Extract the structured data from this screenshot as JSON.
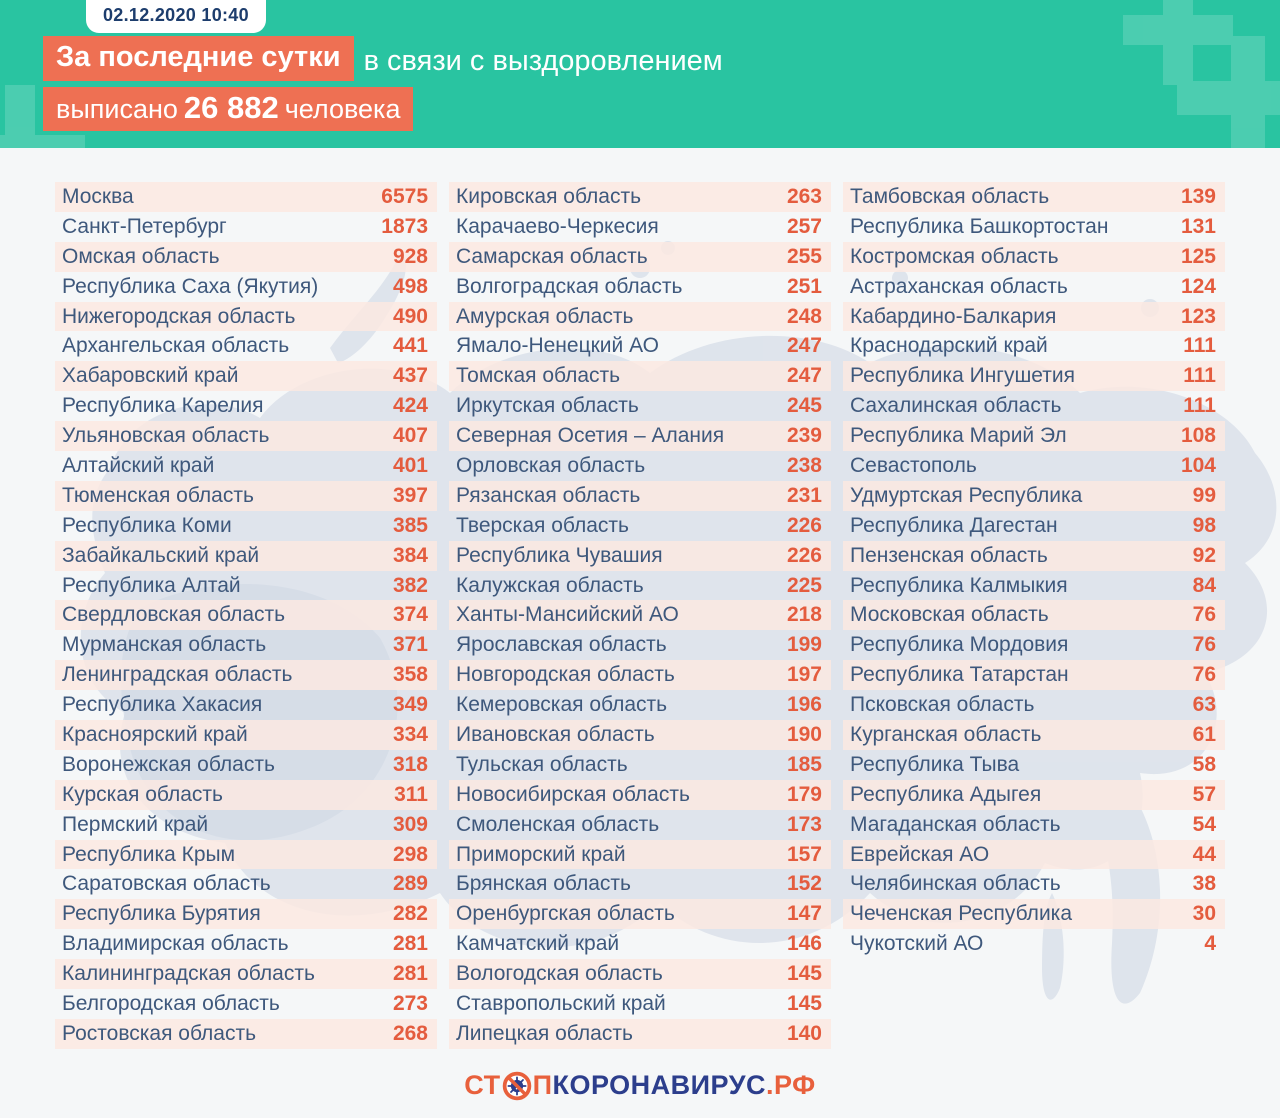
{
  "badge": {
    "datetime": "02.12.2020 10:40"
  },
  "headline": {
    "highlight": "За последние сутки",
    "rest": "в связи с выздоровлением",
    "line2_prefix": "выписано",
    "line2_number": "26 882",
    "line2_suffix": "человека"
  },
  "chart_data": {
    "type": "table",
    "title": "За последние сутки в связи с выздоровлением выписано 26 882 человека",
    "timestamp": "02.12.2020 10:40",
    "unit": "человека",
    "columns": [
      {
        "rows": [
          {
            "region": "Москва",
            "value": "6575"
          },
          {
            "region": "Санкт-Петербург",
            "value": "1873"
          },
          {
            "region": "Омская область",
            "value": "928"
          },
          {
            "region": "Республика Саха (Якутия)",
            "value": "498"
          },
          {
            "region": "Нижегородская область",
            "value": "490"
          },
          {
            "region": "Архангельская область",
            "value": "441"
          },
          {
            "region": "Хабаровский край",
            "value": "437"
          },
          {
            "region": "Республика Карелия",
            "value": "424"
          },
          {
            "region": "Ульяновская область",
            "value": "407"
          },
          {
            "region": "Алтайский край",
            "value": "401"
          },
          {
            "region": "Тюменская область",
            "value": "397"
          },
          {
            "region": "Республика Коми",
            "value": "385"
          },
          {
            "region": "Забайкальский край",
            "value": "384"
          },
          {
            "region": "Республика Алтай",
            "value": "382"
          },
          {
            "region": "Свердловская область",
            "value": "374"
          },
          {
            "region": "Мурманская область",
            "value": "371"
          },
          {
            "region": "Ленинградская область",
            "value": "358"
          },
          {
            "region": "Республика Хакасия",
            "value": "349"
          },
          {
            "region": "Красноярский край",
            "value": "334"
          },
          {
            "region": "Воронежская область",
            "value": "318"
          },
          {
            "region": "Курская область",
            "value": "311"
          },
          {
            "region": "Пермский край",
            "value": "309"
          },
          {
            "region": "Республика Крым",
            "value": "298"
          },
          {
            "region": "Саратовская область",
            "value": "289"
          },
          {
            "region": "Республика Бурятия",
            "value": "282"
          },
          {
            "region": "Владимирская область",
            "value": "281"
          },
          {
            "region": "Калининградская область",
            "value": "281"
          },
          {
            "region": "Белгородская область",
            "value": "273"
          },
          {
            "region": "Ростовская область",
            "value": "268"
          }
        ]
      },
      {
        "rows": [
          {
            "region": "Кировская область",
            "value": "263"
          },
          {
            "region": "Карачаево-Черкесия",
            "value": "257"
          },
          {
            "region": "Самарская область",
            "value": "255"
          },
          {
            "region": "Волгоградская область",
            "value": "251"
          },
          {
            "region": "Амурская область",
            "value": "248"
          },
          {
            "region": "Ямало-Ненецкий АО",
            "value": "247"
          },
          {
            "region": "Томская область",
            "value": "247"
          },
          {
            "region": "Иркутская область",
            "value": "245"
          },
          {
            "region": "Северная Осетия – Алания",
            "value": "239"
          },
          {
            "region": "Орловская область",
            "value": "238"
          },
          {
            "region": "Рязанская область",
            "value": "231"
          },
          {
            "region": "Тверская область",
            "value": "226"
          },
          {
            "region": "Республика Чувашия",
            "value": "226"
          },
          {
            "region": "Калужская область",
            "value": "225"
          },
          {
            "region": "Ханты-Мансийский АО",
            "value": "218"
          },
          {
            "region": "Ярославская область",
            "value": "199"
          },
          {
            "region": "Новгородская область",
            "value": "197"
          },
          {
            "region": "Кемеровская область",
            "value": "196"
          },
          {
            "region": "Ивановская область",
            "value": "190"
          },
          {
            "region": "Тульская область",
            "value": "185"
          },
          {
            "region": "Новосибирская область",
            "value": "179"
          },
          {
            "region": "Смоленская область",
            "value": "173"
          },
          {
            "region": "Приморский край",
            "value": "157"
          },
          {
            "region": "Брянская область",
            "value": "152"
          },
          {
            "region": "Оренбургская область",
            "value": "147"
          },
          {
            "region": "Камчатский край",
            "value": "146"
          },
          {
            "region": "Вологодская область",
            "value": "145"
          },
          {
            "region": "Ставропольский край",
            "value": "145"
          },
          {
            "region": "Липецкая область",
            "value": "140"
          }
        ]
      },
      {
        "rows": [
          {
            "region": "Тамбовская область",
            "value": "139"
          },
          {
            "region": "Республика Башкортостан",
            "value": "131"
          },
          {
            "region": "Костромская область",
            "value": "125"
          },
          {
            "region": "Астраханская область",
            "value": "124"
          },
          {
            "region": "Кабардино-Балкария",
            "value": "123"
          },
          {
            "region": "Краснодарский край",
            "value": "111"
          },
          {
            "region": "Республика Ингушетия",
            "value": "111"
          },
          {
            "region": "Сахалинская область",
            "value": "111"
          },
          {
            "region": "Республика Марий Эл",
            "value": "108"
          },
          {
            "region": "Севастополь",
            "value": "104"
          },
          {
            "region": "Удмуртская Республика",
            "value": "99"
          },
          {
            "region": "Республика Дагестан",
            "value": "98"
          },
          {
            "region": "Пензенская область",
            "value": "92"
          },
          {
            "region": "Республика Калмыкия",
            "value": "84"
          },
          {
            "region": "Московская область",
            "value": "76"
          },
          {
            "region": "Республика Мордовия",
            "value": "76"
          },
          {
            "region": "Республика Татарстан",
            "value": "76"
          },
          {
            "region": "Псковская область",
            "value": "63"
          },
          {
            "region": "Курганская область",
            "value": "61"
          },
          {
            "region": "Республика Тыва",
            "value": "58"
          },
          {
            "region": "Республика Адыгея",
            "value": "57"
          },
          {
            "region": "Магаданская область",
            "value": "54"
          },
          {
            "region": "Еврейская АО",
            "value": "44"
          },
          {
            "region": "Челябинская область",
            "value": "38"
          },
          {
            "region": "Чеченская Республика",
            "value": "30"
          },
          {
            "region": "Чукотский АО",
            "value": "4"
          }
        ]
      }
    ]
  },
  "logo": {
    "prefix": "СТ",
    "after_icon": "ПКОРОНАВИРУС",
    "suffix": ".РФ"
  },
  "colors": {
    "header_teal": "#29C4A1",
    "highlight_orange": "#EE7053",
    "number_orange": "#E45C3E",
    "region_text": "#3E587C",
    "badge_text_navy": "#1D3D6D",
    "row_stripe_pink": "#FBE9E2",
    "body_bg": "#F5F7F8",
    "map_gray": "#DBE1EA",
    "logo_navy": "#2C3E8C",
    "logo_orange": "#E8603C"
  }
}
